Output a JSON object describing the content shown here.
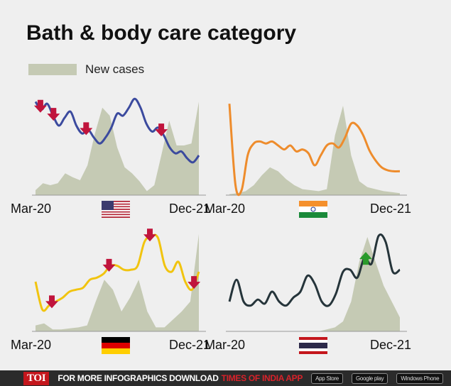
{
  "title": "Bath & body care category",
  "legend": {
    "label": "New cases",
    "color": "#c5cab4"
  },
  "footer": {
    "logo": "TOI",
    "text": "FOR MORE  INFOGRAPHICS DOWNLOAD",
    "app": "TIMES OF INDIA  APP",
    "stores": [
      "App Store",
      "Google play",
      "Windows Phone"
    ]
  },
  "chart_data": [
    {
      "type": "line",
      "country": "USA",
      "flag": "usa-flag",
      "line_color": "#3b4a9e",
      "x_start": "Mar-20",
      "x_end": "Dec-21",
      "line": [
        94,
        86,
        92,
        80,
        70,
        78,
        84,
        70,
        62,
        66,
        58,
        52,
        58,
        68,
        82,
        80,
        88,
        97,
        88,
        72,
        64,
        68,
        60,
        48,
        42,
        44,
        37,
        33,
        40
      ],
      "cases": [
        5,
        12,
        10,
        12,
        22,
        18,
        15,
        30,
        62,
        88,
        80,
        48,
        28,
        22,
        14,
        4,
        10,
        42,
        75,
        50,
        50,
        52,
        94
      ],
      "arrows": [
        {
          "at": 3,
          "dir": "down"
        },
        {
          "at": 11,
          "dir": "down"
        },
        {
          "at": 31,
          "dir": "down"
        },
        {
          "at": 77,
          "dir": "down"
        }
      ]
    },
    {
      "type": "line",
      "country": "India",
      "flag": "india-flag",
      "line_color": "#ee8c2c",
      "x_start": "Mar-20",
      "x_end": "Dec-21",
      "line": [
        92,
        10,
        5,
        40,
        52,
        54,
        52,
        54,
        50,
        46,
        50,
        44,
        46,
        42,
        30,
        40,
        50,
        52,
        48,
        58,
        72,
        70,
        60,
        45,
        35,
        28,
        25,
        24,
        24
      ],
      "cases": [
        1,
        2,
        4,
        10,
        20,
        28,
        24,
        16,
        10,
        6,
        5,
        4,
        6,
        60,
        90,
        40,
        14,
        8,
        6,
        4,
        3,
        2
      ],
      "arrows": []
    },
    {
      "type": "line",
      "country": "Germany",
      "flag": "germany-flag",
      "line_color": "#f1c40f",
      "x_start": "Mar-20",
      "x_end": "Dec-21",
      "line": [
        50,
        22,
        26,
        30,
        34,
        40,
        42,
        44,
        52,
        54,
        58,
        66,
        66,
        62,
        62,
        66,
        90,
        96,
        94,
        66,
        60,
        70,
        50,
        42,
        60
      ],
      "cases": [
        6,
        8,
        2,
        2,
        3,
        4,
        6,
        30,
        52,
        42,
        20,
        34,
        52,
        20,
        4,
        4,
        12,
        20,
        30,
        98
      ],
      "arrows": [
        {
          "at": 10,
          "dir": "down"
        },
        {
          "at": 45,
          "dir": "down"
        },
        {
          "at": 70,
          "dir": "down"
        },
        {
          "at": 97,
          "dir": "down"
        }
      ]
    },
    {
      "type": "line",
      "country": "Thailand",
      "flag": "thailand-flag",
      "line_color": "#25343a",
      "x_start": "Mar-20",
      "x_end": "Dec-21",
      "line": [
        30,
        52,
        30,
        26,
        32,
        28,
        40,
        30,
        26,
        34,
        40,
        56,
        48,
        30,
        26,
        38,
        60,
        62,
        54,
        74,
        68,
        96,
        90,
        60,
        62
      ],
      "cases": [
        0,
        0,
        0,
        0,
        0,
        0,
        0,
        0,
        0,
        0,
        0,
        0,
        2,
        4,
        10,
        30,
        70,
        95,
        70,
        46,
        30,
        14
      ],
      "arrows": [
        {
          "at": 80,
          "dir": "up"
        }
      ]
    }
  ]
}
